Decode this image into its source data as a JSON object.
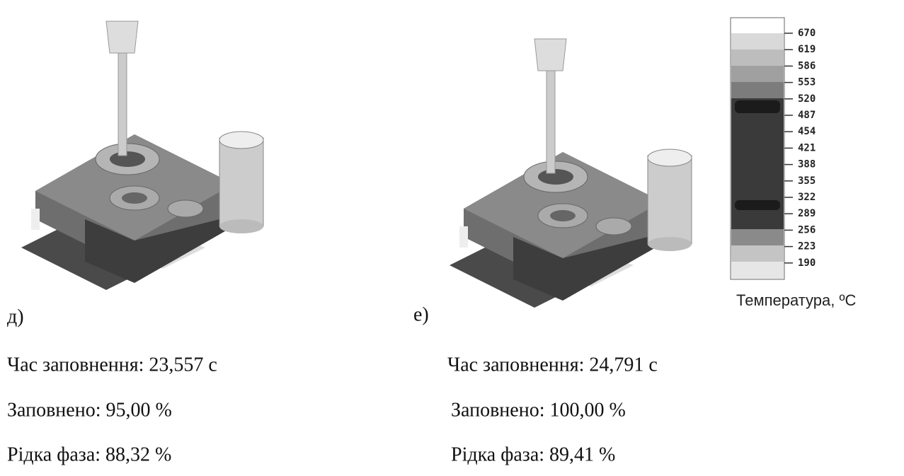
{
  "panels": [
    {
      "label": "д)",
      "lines": [
        "Час заповнення: 23,557 с",
        "Заповнено: 95,00 %",
        "Рідка фаза: 88,32 %"
      ]
    },
    {
      "label": "е)",
      "lines": [
        "Час заповнення: 24,791 с",
        "Заповнено: 100,00 %",
        "Рідка фаза: 89,41 %"
      ]
    }
  ],
  "legend": {
    "title": "Температура, ºC",
    "ticks": [
      670,
      619,
      586,
      553,
      520,
      487,
      454,
      421,
      388,
      355,
      322,
      289,
      256,
      223,
      190
    ]
  }
}
